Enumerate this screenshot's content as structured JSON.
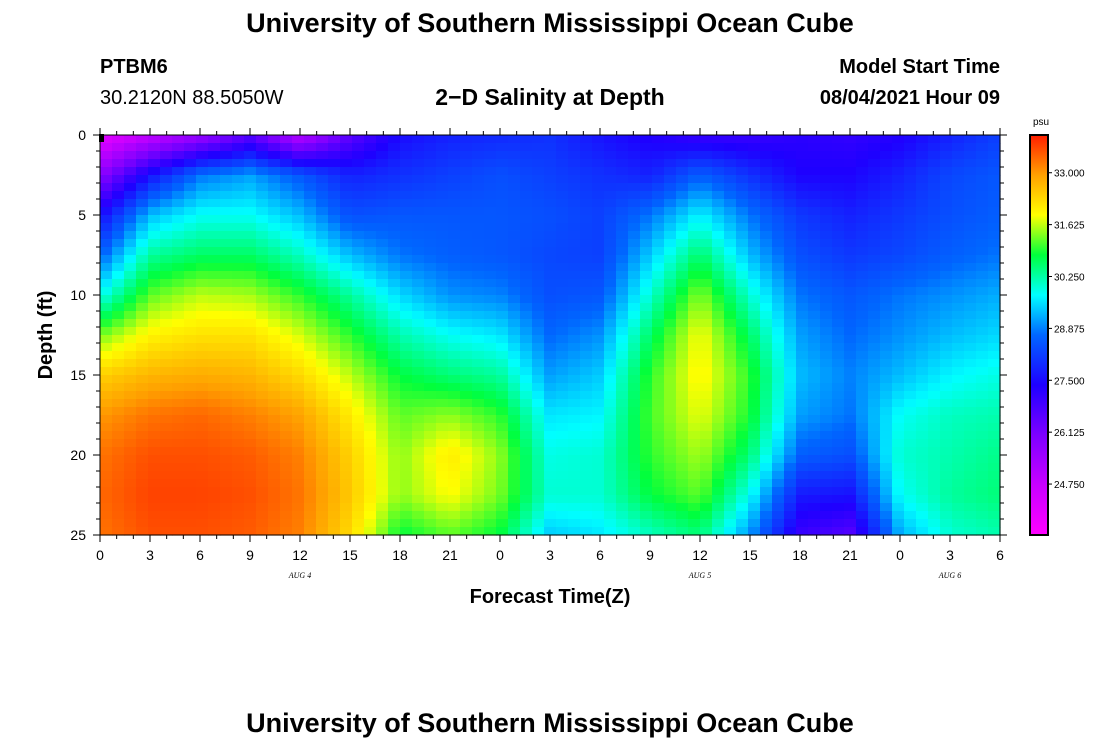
{
  "header": {
    "title": "University of Southern Mississippi Ocean Cube",
    "station": "PTBM6",
    "coords": "30.2120N  88.5050W",
    "subtitle": "2−D Salinity at Depth",
    "model_label": "Model Start Time",
    "model_time": "08/04/2021 Hour 09"
  },
  "footer": {
    "title": "University of Southern Mississippi Ocean Cube"
  },
  "chart_data": {
    "type": "heatmap",
    "xlabel": "Forecast Time(Z)",
    "ylabel": "Depth (ft)",
    "x_tick_labels": [
      "0",
      "3",
      "6",
      "9",
      "12",
      "15",
      "18",
      "21",
      "0",
      "3",
      "6",
      "9",
      "12",
      "15",
      "18",
      "21",
      "0",
      "3",
      "6"
    ],
    "x_range_hours": [
      0,
      54
    ],
    "date_labels": [
      {
        "label": "AUG 4",
        "hour": 12
      },
      {
        "label": "AUG 5",
        "hour": 36
      },
      {
        "label": "AUG 6",
        "hour": 51
      }
    ],
    "y_ticks": [
      0,
      5,
      10,
      15,
      20,
      25
    ],
    "y_range": [
      0,
      25
    ],
    "y_inverted": true,
    "colorbar": {
      "unit": "psu",
      "labels": [
        "33.000",
        "31.625",
        "30.250",
        "28.875",
        "27.500",
        "26.125",
        "24.750"
      ],
      "range": [
        23.4,
        34.0
      ]
    },
    "salinity_grid": {
      "hours": [
        0,
        3,
        6,
        9,
        12,
        15,
        18,
        21,
        24,
        27,
        30,
        33,
        36,
        39,
        42,
        45,
        48,
        51,
        54
      ],
      "depths": [
        0,
        2.5,
        5,
        7.5,
        10,
        12.5,
        15,
        17.5,
        20,
        22.5,
        25
      ],
      "values": [
        [
          24.0,
          24.8,
          25.5,
          26.5,
          25.0,
          26.5,
          27.5,
          27.8,
          27.9,
          28.0,
          27.6,
          27.3,
          27.0,
          27.0,
          27.2,
          27.1,
          27.3,
          27.8,
          28.2
        ],
        [
          25.8,
          27.6,
          28.8,
          29.1,
          28.5,
          27.8,
          28.0,
          28.2,
          28.4,
          28.2,
          28.0,
          27.8,
          28.6,
          28.0,
          27.4,
          27.4,
          27.8,
          28.3,
          28.5
        ],
        [
          27.5,
          29.3,
          29.8,
          29.8,
          29.3,
          28.4,
          28.5,
          28.5,
          28.5,
          28.4,
          28.2,
          28.8,
          29.7,
          28.8,
          28.1,
          27.8,
          28.1,
          28.4,
          28.6
        ],
        [
          28.6,
          30.3,
          30.6,
          30.6,
          30.1,
          29.3,
          28.8,
          28.6,
          28.5,
          28.3,
          28.2,
          29.4,
          30.6,
          29.3,
          28.4,
          28.1,
          28.3,
          28.6,
          28.8
        ],
        [
          29.8,
          31.2,
          31.6,
          31.5,
          31.0,
          30.3,
          29.5,
          29.0,
          28.9,
          28.4,
          28.5,
          30.0,
          31.4,
          30.0,
          28.8,
          28.5,
          28.8,
          29.0,
          29.2
        ],
        [
          31.3,
          32.0,
          32.2,
          32.2,
          31.7,
          31.0,
          30.2,
          29.8,
          29.6,
          28.7,
          29.0,
          30.6,
          31.9,
          30.6,
          29.1,
          28.7,
          29.0,
          29.3,
          29.5
        ],
        [
          32.4,
          32.7,
          32.8,
          32.7,
          32.3,
          31.6,
          30.8,
          30.5,
          30.3,
          29.1,
          29.4,
          31.0,
          32.0,
          31.0,
          29.3,
          28.9,
          29.3,
          29.7,
          29.9
        ],
        [
          33.0,
          33.3,
          33.4,
          33.2,
          32.9,
          32.1,
          31.2,
          31.4,
          31.0,
          29.6,
          29.7,
          31.1,
          31.8,
          30.9,
          29.1,
          28.8,
          29.8,
          30.1,
          30.2
        ],
        [
          33.3,
          33.6,
          33.6,
          33.5,
          33.2,
          32.4,
          31.4,
          32.1,
          31.4,
          29.9,
          30.0,
          31.0,
          31.5,
          30.5,
          28.6,
          28.4,
          30.0,
          30.2,
          30.4
        ],
        [
          33.4,
          33.7,
          33.7,
          33.6,
          33.3,
          32.5,
          31.4,
          31.9,
          31.3,
          30.0,
          30.0,
          30.8,
          31.2,
          29.8,
          27.7,
          27.6,
          29.8,
          30.3,
          30.5
        ],
        [
          33.3,
          33.6,
          33.6,
          33.5,
          33.2,
          32.3,
          30.8,
          31.2,
          30.8,
          29.4,
          29.6,
          30.1,
          30.5,
          29.0,
          27.0,
          26.6,
          29.2,
          30.0,
          30.2
        ]
      ]
    }
  }
}
